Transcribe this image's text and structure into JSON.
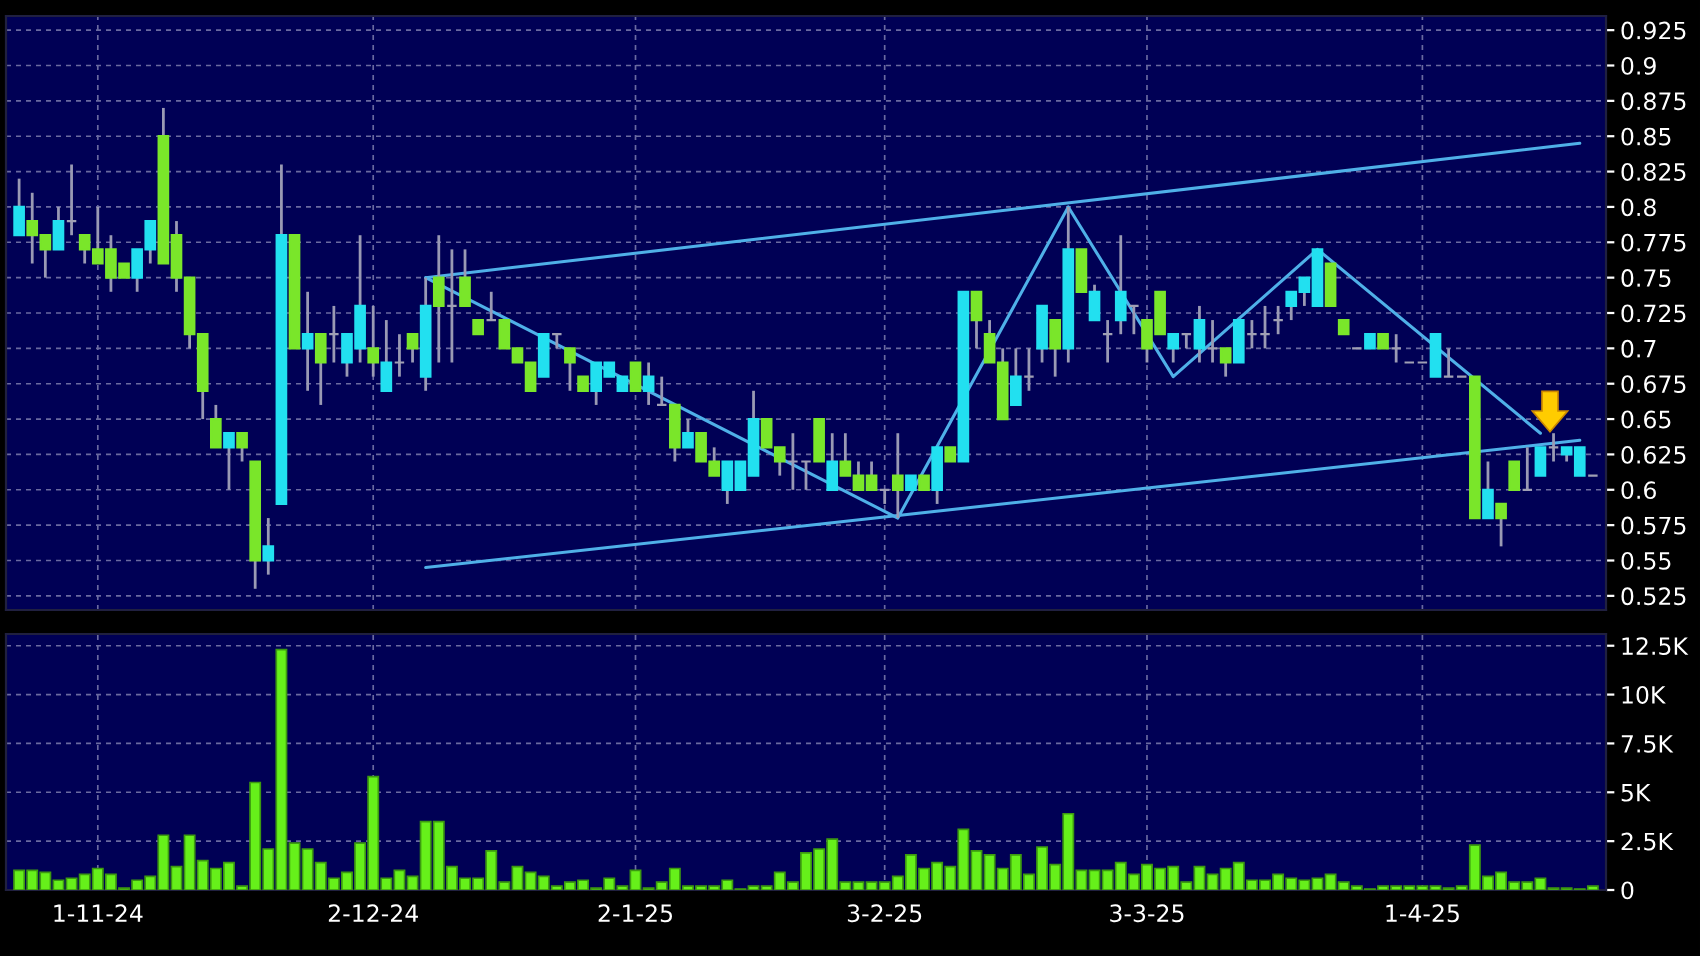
{
  "chart_data": [
    {
      "type": "candlestick",
      "categories": [
        null,
        null,
        null,
        null,
        null,
        null,
        null,
        null,
        null,
        null,
        null,
        null,
        null,
        null,
        null,
        null,
        null,
        null,
        null,
        null,
        null,
        null,
        null,
        null,
        null,
        null,
        null,
        null,
        null,
        null,
        null,
        null,
        null,
        null,
        null,
        null,
        null,
        null,
        null,
        null,
        null,
        null,
        null,
        null,
        null,
        null,
        null,
        null,
        null,
        null,
        null,
        null,
        null,
        null,
        null,
        null,
        null,
        null,
        null,
        null,
        null,
        null,
        null,
        null,
        null,
        null,
        null,
        null,
        null,
        null,
        null,
        null,
        null,
        null,
        null,
        null,
        null,
        null,
        null,
        null,
        null,
        null,
        null,
        null,
        null,
        null,
        null,
        null,
        null,
        null,
        null,
        null,
        null,
        null,
        null,
        null,
        null,
        null,
        null,
        null,
        null,
        null,
        null,
        null,
        null,
        null,
        null,
        null,
        null,
        null,
        null,
        null,
        null,
        null,
        null,
        null,
        null,
        null,
        null,
        null,
        null
      ],
      "ohlc": [
        [
          0.78,
          0.82,
          0.78,
          0.8
        ],
        [
          0.79,
          0.81,
          0.76,
          0.78
        ],
        [
          0.78,
          0.78,
          0.75,
          0.77
        ],
        [
          0.77,
          0.8,
          0.77,
          0.79
        ],
        [
          0.79,
          0.83,
          0.78,
          0.79
        ],
        [
          0.78,
          0.78,
          0.76,
          0.77
        ],
        [
          0.77,
          0.8,
          0.76,
          0.76
        ],
        [
          0.77,
          0.78,
          0.74,
          0.75
        ],
        [
          0.76,
          0.76,
          0.75,
          0.75
        ],
        [
          0.75,
          0.77,
          0.74,
          0.77
        ],
        [
          0.77,
          0.79,
          0.76,
          0.79
        ],
        [
          0.85,
          0.87,
          0.76,
          0.76
        ],
        [
          0.78,
          0.79,
          0.74,
          0.75
        ],
        [
          0.75,
          0.75,
          0.7,
          0.71
        ],
        [
          0.71,
          0.71,
          0.65,
          0.67
        ],
        [
          0.65,
          0.66,
          0.63,
          0.63
        ],
        [
          0.63,
          0.64,
          0.6,
          0.64
        ],
        [
          0.64,
          0.64,
          0.62,
          0.63
        ],
        [
          0.62,
          0.62,
          0.53,
          0.55
        ],
        [
          0.55,
          0.58,
          0.54,
          0.56
        ],
        [
          0.59,
          0.83,
          0.59,
          0.78
        ],
        [
          0.78,
          0.78,
          0.7,
          0.7
        ],
        [
          0.7,
          0.74,
          0.67,
          0.71
        ],
        [
          0.71,
          0.71,
          0.66,
          0.69
        ],
        [
          0.71,
          0.73,
          0.69,
          0.71
        ],
        [
          0.69,
          0.71,
          0.68,
          0.71
        ],
        [
          0.7,
          0.78,
          0.69,
          0.73
        ],
        [
          0.7,
          0.73,
          0.68,
          0.69
        ],
        [
          0.67,
          0.72,
          0.67,
          0.69
        ],
        [
          0.69,
          0.71,
          0.68,
          0.69
        ],
        [
          0.71,
          0.71,
          0.69,
          0.7
        ],
        [
          0.68,
          0.75,
          0.67,
          0.73
        ],
        [
          0.75,
          0.78,
          0.69,
          0.73
        ],
        [
          0.73,
          0.77,
          0.69,
          0.73
        ],
        [
          0.75,
          0.77,
          0.73,
          0.73
        ],
        [
          0.72,
          0.72,
          0.71,
          0.71
        ],
        [
          0.72,
          0.74,
          0.72,
          0.72
        ],
        [
          0.72,
          0.72,
          0.7,
          0.7
        ],
        [
          0.7,
          0.7,
          0.69,
          0.69
        ],
        [
          0.69,
          0.69,
          0.67,
          0.67
        ],
        [
          0.68,
          0.71,
          0.68,
          0.71
        ],
        [
          0.71,
          0.71,
          0.7,
          0.71
        ],
        [
          0.7,
          0.7,
          0.67,
          0.69
        ],
        [
          0.68,
          0.68,
          0.67,
          0.67
        ],
        [
          0.67,
          0.69,
          0.66,
          0.69
        ],
        [
          0.68,
          0.69,
          0.68,
          0.69
        ],
        [
          0.67,
          0.68,
          0.67,
          0.68
        ],
        [
          0.69,
          0.69,
          0.67,
          0.67
        ],
        [
          0.67,
          0.69,
          0.66,
          0.68
        ],
        [
          0.66,
          0.68,
          0.66,
          0.66
        ],
        [
          0.66,
          0.66,
          0.62,
          0.63
        ],
        [
          0.63,
          0.65,
          0.63,
          0.64
        ],
        [
          0.64,
          0.64,
          0.62,
          0.62
        ],
        [
          0.62,
          0.63,
          0.61,
          0.61
        ],
        [
          0.6,
          0.62,
          0.59,
          0.62
        ],
        [
          0.6,
          0.62,
          0.6,
          0.62
        ],
        [
          0.61,
          0.67,
          0.61,
          0.65
        ],
        [
          0.65,
          0.65,
          0.63,
          0.63
        ],
        [
          0.63,
          0.63,
          0.61,
          0.62
        ],
        [
          0.62,
          0.64,
          0.6,
          0.62
        ],
        [
          0.62,
          0.62,
          0.6,
          0.62
        ],
        [
          0.65,
          0.65,
          0.62,
          0.62
        ],
        [
          0.6,
          0.64,
          0.6,
          0.62
        ],
        [
          0.62,
          0.64,
          0.61,
          0.61
        ],
        [
          0.61,
          0.62,
          0.6,
          0.6
        ],
        [
          0.61,
          0.62,
          0.6,
          0.6
        ],
        [
          0.6,
          0.6,
          0.59,
          0.6
        ],
        [
          0.61,
          0.64,
          0.58,
          0.6
        ],
        [
          0.6,
          0.61,
          0.6,
          0.61
        ],
        [
          0.61,
          0.61,
          0.6,
          0.6
        ],
        [
          0.6,
          0.63,
          0.59,
          0.63
        ],
        [
          0.63,
          0.63,
          0.62,
          0.62
        ],
        [
          0.62,
          0.74,
          0.62,
          0.74
        ],
        [
          0.74,
          0.74,
          0.7,
          0.72
        ],
        [
          0.71,
          0.72,
          0.69,
          0.69
        ],
        [
          0.69,
          0.7,
          0.65,
          0.65
        ],
        [
          0.66,
          0.7,
          0.66,
          0.68
        ],
        [
          0.68,
          0.7,
          0.67,
          0.68
        ],
        [
          0.7,
          0.73,
          0.69,
          0.73
        ],
        [
          0.72,
          0.72,
          0.68,
          0.7
        ],
        [
          0.7,
          0.8,
          0.69,
          0.77
        ],
        [
          0.77,
          0.77,
          0.74,
          0.74
        ],
        [
          0.72,
          0.745,
          0.72,
          0.74
        ],
        [
          0.71,
          0.72,
          0.69,
          0.71
        ],
        [
          0.72,
          0.78,
          0.71,
          0.74
        ],
        [
          0.73,
          0.73,
          0.71,
          0.73
        ],
        [
          0.72,
          0.72,
          0.69,
          0.7
        ],
        [
          0.74,
          0.74,
          0.71,
          0.71
        ],
        [
          0.7,
          0.71,
          0.69,
          0.71
        ],
        [
          0.71,
          0.71,
          0.7,
          0.71
        ],
        [
          0.7,
          0.73,
          0.69,
          0.72
        ],
        [
          0.7,
          0.72,
          0.69,
          0.7
        ],
        [
          0.7,
          0.7,
          0.68,
          0.69
        ],
        [
          0.69,
          0.72,
          0.69,
          0.72
        ],
        [
          0.71,
          0.72,
          0.7,
          0.71
        ],
        [
          0.71,
          0.73,
          0.7,
          0.71
        ],
        [
          0.72,
          0.73,
          0.71,
          0.72
        ],
        [
          0.73,
          0.74,
          0.72,
          0.74
        ],
        [
          0.74,
          0.75,
          0.73,
          0.75
        ],
        [
          0.73,
          0.77,
          0.73,
          0.77
        ],
        [
          0.76,
          0.76,
          0.73,
          0.73
        ],
        [
          0.72,
          0.72,
          0.71,
          0.71
        ],
        [
          0.7,
          0.7,
          0.7,
          0.7
        ],
        [
          0.7,
          0.71,
          0.7,
          0.71
        ],
        [
          0.71,
          0.71,
          0.7,
          0.7
        ],
        [
          0.7,
          0.71,
          0.69,
          0.7
        ],
        [
          0.69,
          0.69,
          0.69,
          0.69
        ],
        [
          0.69,
          0.69,
          0.69,
          0.69
        ],
        [
          0.68,
          0.71,
          0.68,
          0.71
        ],
        [
          0.68,
          0.7,
          0.68,
          0.68
        ],
        [
          0.68,
          0.68,
          0.68,
          0.68
        ],
        [
          0.68,
          0.68,
          0.58,
          0.58
        ],
        [
          0.58,
          0.62,
          0.58,
          0.6
        ],
        [
          0.59,
          0.59,
          0.56,
          0.58
        ],
        [
          0.62,
          0.62,
          0.6,
          0.6
        ],
        [
          0.6,
          0.63,
          0.6,
          0.6
        ],
        [
          0.61,
          0.63,
          0.61,
          0.63
        ],
        [
          0.63,
          0.64,
          0.62,
          0.63
        ],
        [
          0.625,
          0.63,
          0.62,
          0.63
        ],
        [
          0.61,
          0.63,
          0.61,
          0.63
        ],
        [
          0.61,
          0.61,
          0.61,
          0.61
        ]
      ],
      "colors": [
        "#22e0f0",
        "#7ae62a",
        "#7ae62a",
        "#22e0f0",
        "#a0a0b4",
        "#7ae62a",
        "#7ae62a",
        "#7ae62a",
        "#7ae62a",
        "#22e0f0",
        "#22e0f0",
        "#7ae62a",
        "#7ae62a",
        "#7ae62a",
        "#7ae62a",
        "#7ae62a",
        "#22e0f0",
        "#7ae62a",
        "#7ae62a",
        "#22e0f0",
        "#22e0f0",
        "#7ae62a",
        "#22e0f0",
        "#7ae62a",
        "#a0a0b4",
        "#22e0f0",
        "#22e0f0",
        "#7ae62a",
        "#22e0f0",
        "#a0a0b4",
        "#7ae62a",
        "#22e0f0",
        "#7ae62a",
        "#a0a0b4",
        "#7ae62a",
        "#7ae62a",
        "#a0a0b4",
        "#7ae62a",
        "#7ae62a",
        "#7ae62a",
        "#22e0f0",
        "#a0a0b4",
        "#7ae62a",
        "#7ae62a",
        "#22e0f0",
        "#22e0f0",
        "#22e0f0",
        "#7ae62a",
        "#22e0f0",
        "#a0a0b4",
        "#7ae62a",
        "#22e0f0",
        "#7ae62a",
        "#7ae62a",
        "#22e0f0",
        "#22e0f0",
        "#22e0f0",
        "#7ae62a",
        "#7ae62a",
        "#a0a0b4",
        "#a0a0b4",
        "#7ae62a",
        "#22e0f0",
        "#7ae62a",
        "#7ae62a",
        "#7ae62a",
        "#a0a0b4",
        "#7ae62a",
        "#22e0f0",
        "#7ae62a",
        "#22e0f0",
        "#7ae62a",
        "#22e0f0",
        "#7ae62a",
        "#7ae62a",
        "#7ae62a",
        "#22e0f0",
        "#a0a0b4",
        "#22e0f0",
        "#7ae62a",
        "#22e0f0",
        "#7ae62a",
        "#22e0f0",
        "#a0a0b4",
        "#22e0f0",
        "#a0a0b4",
        "#7ae62a",
        "#7ae62a",
        "#22e0f0",
        "#a0a0b4",
        "#22e0f0",
        "#a0a0b4",
        "#7ae62a",
        "#22e0f0",
        "#a0a0b4",
        "#a0a0b4",
        "#a0a0b4",
        "#22e0f0",
        "#22e0f0",
        "#22e0f0",
        "#7ae62a",
        "#7ae62a",
        "#a0a0b4",
        "#22e0f0",
        "#7ae62a",
        "#a0a0b4",
        "#a0a0b4",
        "#a0a0b4",
        "#22e0f0",
        "#a0a0b4",
        "#a0a0b4",
        "#7ae62a",
        "#22e0f0",
        "#7ae62a",
        "#7ae62a",
        "#a0a0b4",
        "#22e0f0",
        "#a0a0b4",
        "#22e0f0",
        "#22e0f0",
        "#a0a0b4"
      ],
      "series": [
        {
          "type": "line",
          "color": "#4fb0e8",
          "values": [
            null,
            null,
            null,
            null,
            null,
            null,
            null,
            null,
            null,
            null,
            null,
            null,
            null,
            null,
            null,
            null,
            null,
            null,
            null,
            null,
            null,
            null,
            null,
            null,
            null,
            null,
            null,
            null,
            null,
            null,
            null,
            0.75,
            null,
            null,
            null,
            null,
            null,
            null,
            null,
            null,
            null,
            null,
            null,
            null,
            null,
            null,
            null,
            null,
            null,
            null,
            null,
            null,
            null,
            null,
            null,
            null,
            null,
            null,
            null,
            null,
            null,
            null,
            null,
            null,
            null,
            null,
            null,
            null,
            null,
            null,
            null,
            null,
            null,
            null,
            null,
            null,
            null,
            null,
            null,
            null,
            null,
            null,
            null,
            null,
            null,
            null,
            null,
            null,
            null,
            null,
            null,
            null,
            null,
            null,
            null,
            null,
            null,
            null,
            null,
            null,
            null,
            null,
            null,
            null,
            null,
            null,
            null,
            null,
            null,
            null,
            null,
            null,
            null,
            null,
            null,
            null,
            null,
            null,
            null,
            0.845,
            null
          ]
        },
        {
          "type": "line",
          "color": "#4fb0e8",
          "values": [
            null,
            null,
            null,
            null,
            null,
            null,
            null,
            null,
            null,
            null,
            null,
            null,
            null,
            null,
            null,
            null,
            null,
            null,
            null,
            null,
            null,
            null,
            null,
            null,
            null,
            null,
            null,
            null,
            null,
            null,
            null,
            0.545,
            null,
            null,
            null,
            null,
            null,
            null,
            null,
            null,
            null,
            null,
            null,
            null,
            null,
            null,
            null,
            null,
            null,
            null,
            null,
            null,
            null,
            null,
            null,
            null,
            null,
            null,
            null,
            null,
            null,
            null,
            null,
            null,
            null,
            null,
            null,
            null,
            null,
            null,
            null,
            null,
            null,
            null,
            null,
            null,
            null,
            null,
            null,
            null,
            null,
            null,
            null,
            null,
            null,
            null,
            null,
            null,
            null,
            null,
            null,
            null,
            null,
            null,
            null,
            null,
            null,
            null,
            null,
            null,
            null,
            null,
            null,
            null,
            null,
            null,
            null,
            null,
            null,
            null,
            null,
            null,
            null,
            null,
            null,
            null,
            null,
            null,
            null,
            0.635,
            null
          ]
        },
        {
          "type": "line",
          "color": "#4fb0e8",
          "values": [
            null,
            null,
            null,
            null,
            null,
            null,
            null,
            null,
            null,
            null,
            null,
            null,
            null,
            null,
            null,
            null,
            null,
            null,
            null,
            null,
            null,
            null,
            null,
            null,
            null,
            null,
            null,
            null,
            null,
            null,
            null,
            0.75,
            null,
            null,
            null,
            null,
            null,
            null,
            null,
            null,
            null,
            null,
            null,
            null,
            null,
            null,
            null,
            null,
            null,
            null,
            null,
            null,
            null,
            null,
            null,
            null,
            null,
            null,
            null,
            null,
            null,
            null,
            null,
            null,
            null,
            null,
            null,
            0.58,
            null,
            null,
            null,
            null,
            null,
            null,
            null,
            null,
            null,
            null,
            null,
            null,
            0.8,
            null,
            null,
            null,
            null,
            null,
            null,
            null,
            0.68,
            null,
            null,
            null,
            null,
            null,
            null,
            null,
            null,
            null,
            null,
            0.77,
            null,
            null,
            null,
            null,
            null,
            null,
            null,
            null,
            null,
            null,
            null,
            null,
            null,
            null,
            null,
            null,
            0.64,
            null,
            null,
            null,
            null
          ]
        }
      ],
      "ylim": [
        0.515,
        0.935
      ],
      "yticks": [
        0.525,
        0.55,
        0.575,
        0.6,
        0.625,
        0.65,
        0.675,
        0.7,
        0.725,
        0.75,
        0.775,
        0.8,
        0.825,
        0.85,
        0.875,
        0.9,
        0.925
      ],
      "tick_labels": "y",
      "grid": true
    },
    {
      "type": "bar",
      "categories": [
        null,
        null,
        null,
        null,
        null,
        null,
        "1-11-24",
        null,
        null,
        null,
        null,
        null,
        null,
        null,
        null,
        null,
        null,
        null,
        null,
        null,
        null,
        null,
        null,
        null,
        null,
        null,
        null,
        "2-12-24",
        null,
        null,
        null,
        null,
        null,
        null,
        null,
        null,
        null,
        null,
        null,
        null,
        null,
        null,
        null,
        null,
        null,
        null,
        null,
        "2-1-25",
        null,
        null,
        null,
        null,
        null,
        null,
        null,
        null,
        null,
        null,
        null,
        null,
        null,
        null,
        null,
        null,
        null,
        null,
        "3-2-25",
        null,
        null,
        null,
        null,
        null,
        null,
        null,
        null,
        null,
        null,
        null,
        null,
        null,
        null,
        null,
        null,
        null,
        null,
        null,
        "3-3-25",
        null,
        null,
        null,
        null,
        null,
        null,
        null,
        null,
        null,
        null,
        null,
        null,
        null,
        null,
        null,
        null,
        null,
        null,
        null,
        null,
        "1-4-25",
        null,
        null,
        null,
        null,
        null,
        null,
        null,
        null,
        null,
        null,
        null,
        null,
        null
      ],
      "values": [
        1000,
        1000,
        900,
        500,
        600,
        800,
        1100,
        800,
        100,
        500,
        700,
        2800,
        1200,
        2800,
        1500,
        1100,
        1400,
        200,
        5500,
        2100,
        12300,
        2400,
        2100,
        1400,
        600,
        900,
        2400,
        5800,
        600,
        1000,
        700,
        3500,
        3500,
        1200,
        600,
        600,
        2000,
        400,
        1200,
        900,
        700,
        200,
        400,
        500,
        100,
        600,
        200,
        1000,
        100,
        400,
        1100,
        200,
        200,
        200,
        500,
        50,
        200,
        200,
        900,
        400,
        1900,
        2100,
        2600,
        400,
        400,
        400,
        400,
        700,
        1800,
        1100,
        1400,
        1200,
        3100,
        2000,
        1800,
        1100,
        1800,
        800,
        2200,
        1300,
        3900,
        1000,
        1000,
        1000,
        1400,
        800,
        1300,
        1100,
        1200,
        400,
        1200,
        800,
        1100,
        1400,
        500,
        500,
        800,
        600,
        500,
        600,
        800,
        400,
        200,
        50,
        200,
        200,
        200,
        200,
        200,
        100,
        200,
        2300,
        700,
        900,
        400,
        400,
        600,
        100,
        100,
        50,
        200
      ],
      "color": "#66f01a",
      "ylim": [
        0,
        13100
      ],
      "yticks": [
        0,
        {
          "value": 2500,
          "label": "2.5K"
        },
        {
          "value": 5000,
          "label": "5K"
        },
        {
          "value": 7500,
          "label": "7.5K"
        },
        {
          "value": 10000,
          "label": "10K"
        },
        {
          "value": 12500,
          "label": "12.5K"
        }
      ],
      "grid": true
    }
  ]
}
